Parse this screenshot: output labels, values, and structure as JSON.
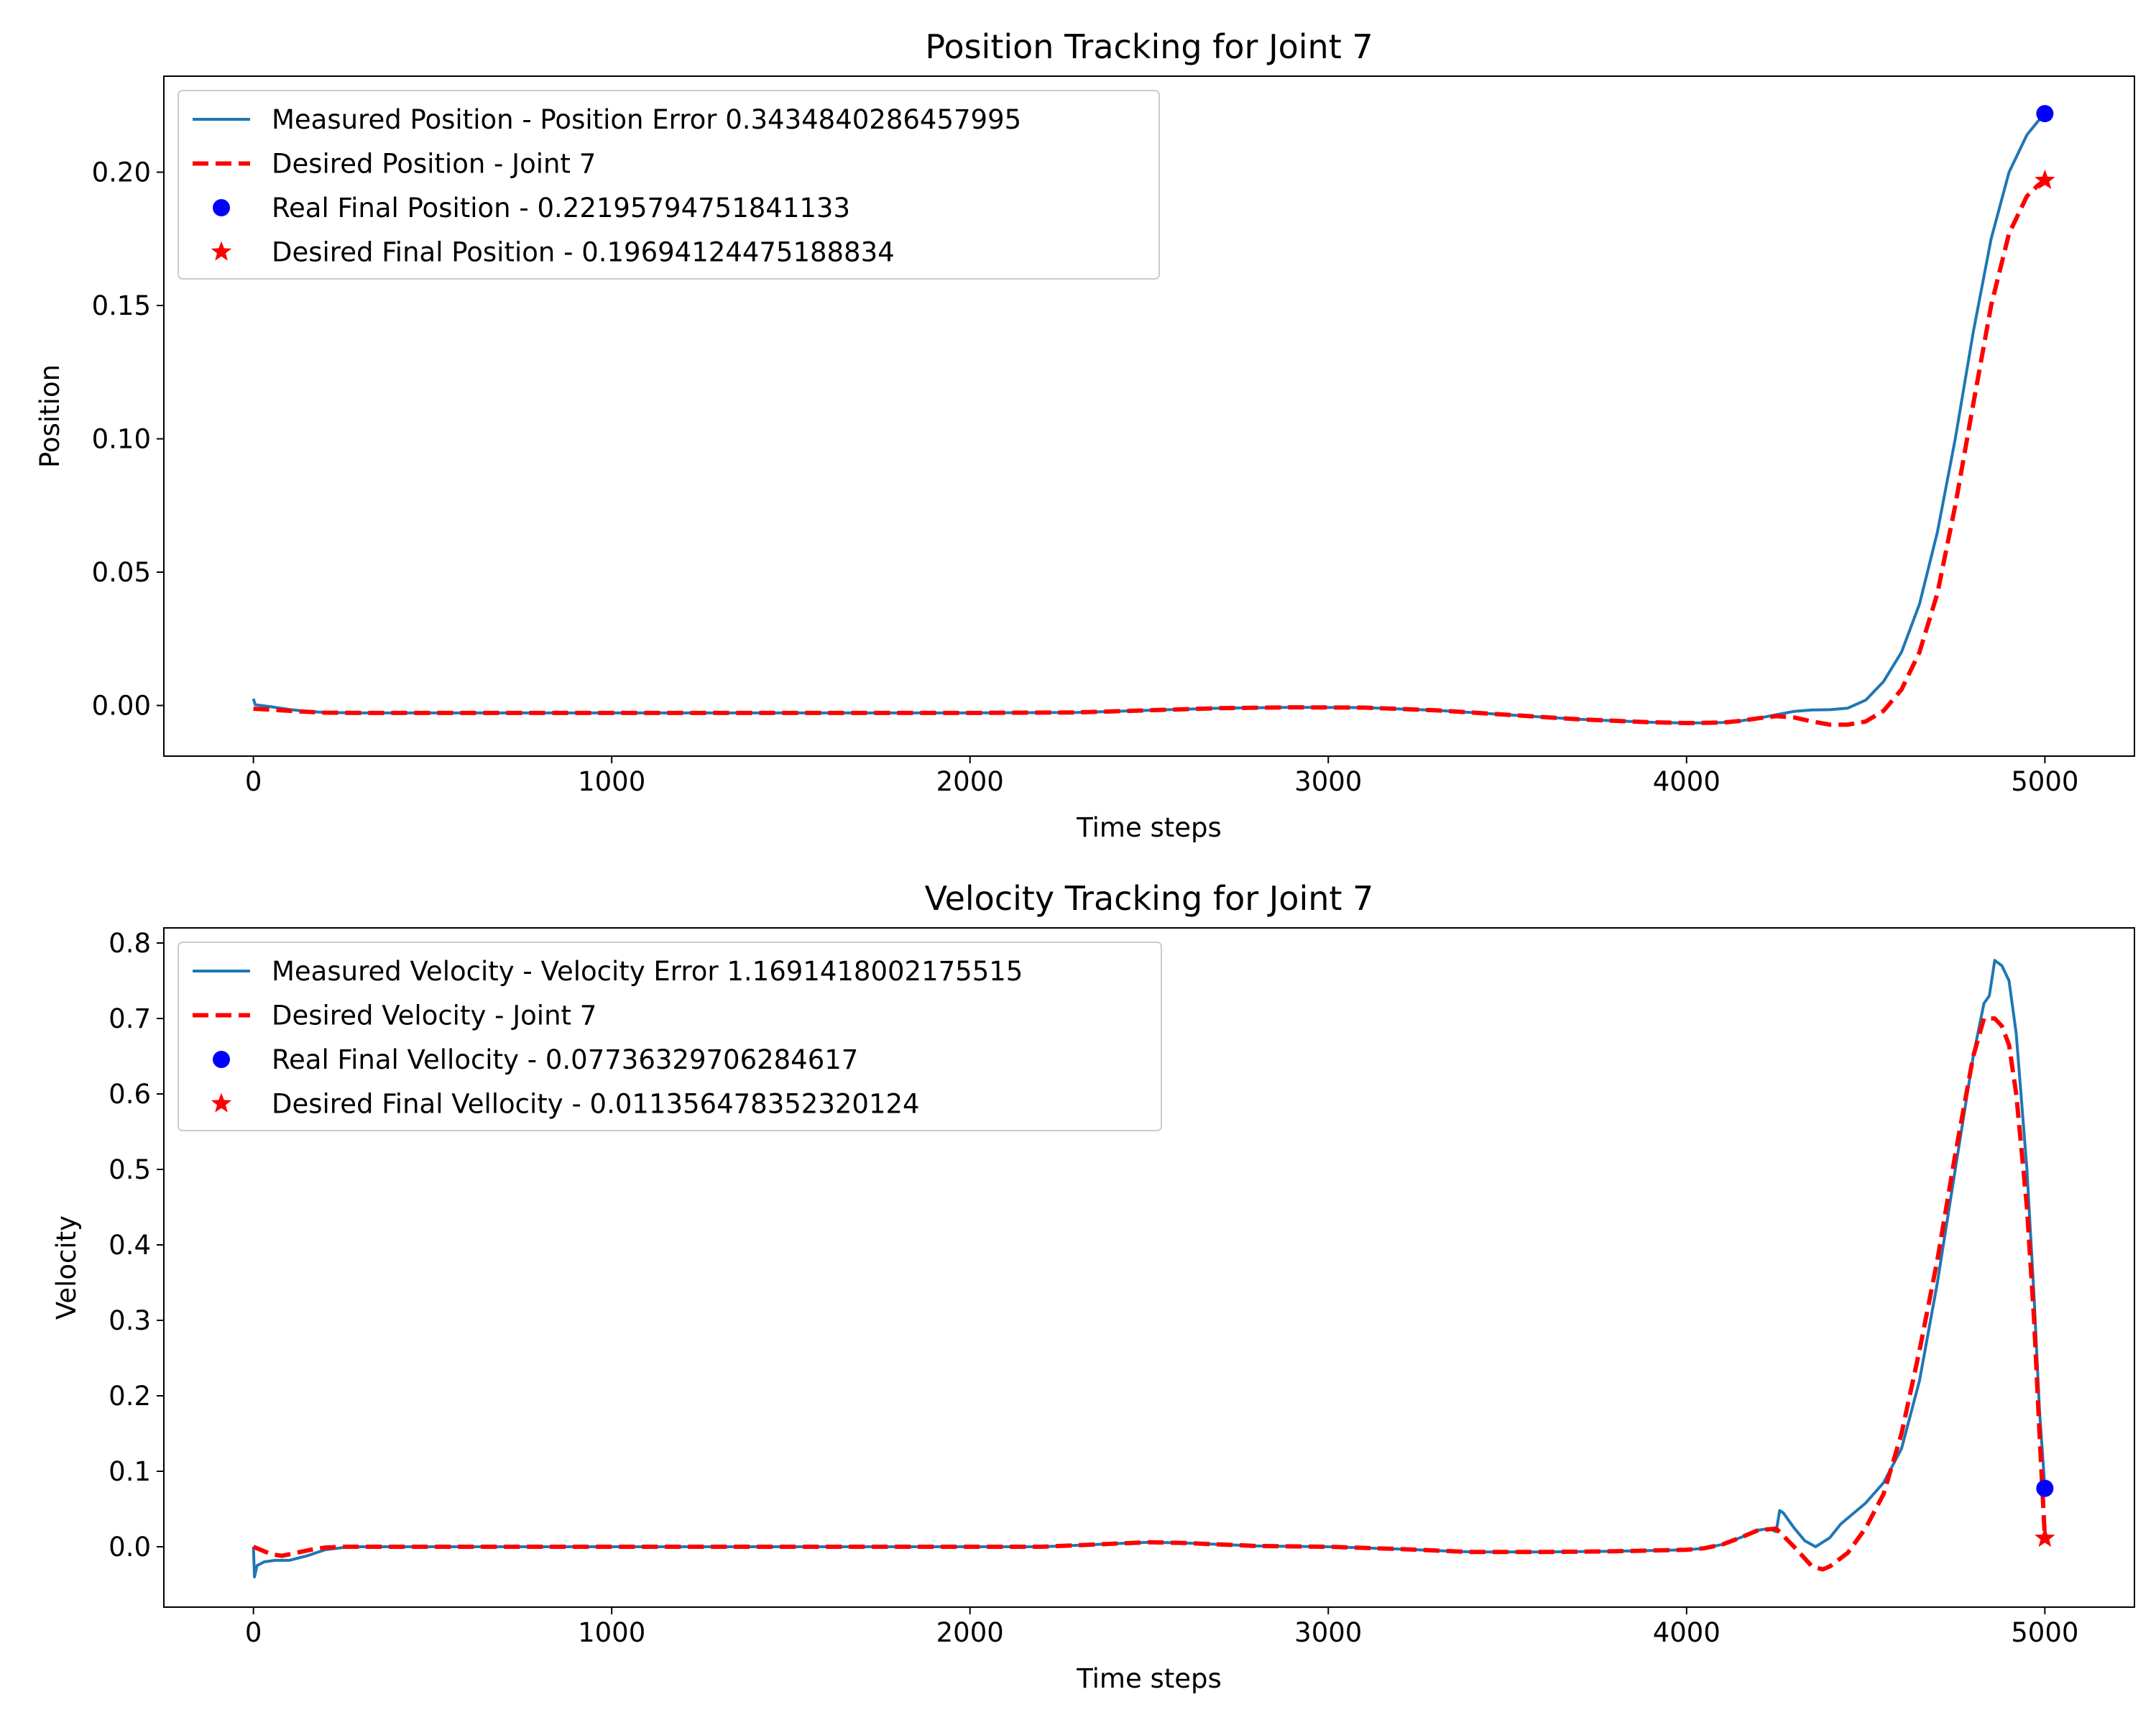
{
  "chart_data": [
    {
      "type": "line",
      "title": "Position Tracking for Joint 7",
      "xlabel": "Time steps",
      "ylabel": "Position",
      "xlim": [
        -250,
        5250
      ],
      "ylim": [
        -0.019,
        0.236
      ],
      "xticks": [
        0,
        1000,
        2000,
        3000,
        4000,
        5000
      ],
      "xtick_labels": [
        "0",
        "1000",
        "2000",
        "3000",
        "4000",
        "5000"
      ],
      "yticks": [
        0.0,
        0.05,
        0.1,
        0.15,
        0.2
      ],
      "ytick_labels": [
        "0.00",
        "0.05",
        "0.10",
        "0.15",
        "0.20"
      ],
      "grid": false,
      "legend_position": "top-left",
      "series": [
        {
          "name": "Measured Position - Position Error 0.3434840286457995",
          "style": "solid",
          "color": "#1f77b4",
          "x": [
            0,
            5,
            10,
            50,
            100,
            150,
            200,
            300,
            500,
            1000,
            1500,
            2000,
            2300,
            2500,
            2700,
            2900,
            3100,
            3300,
            3500,
            3700,
            3900,
            4000,
            4100,
            4150,
            4200,
            4250,
            4300,
            4350,
            4400,
            4450,
            4500,
            4550,
            4600,
            4650,
            4700,
            4750,
            4800,
            4850,
            4900,
            4950,
            4980,
            5000
          ],
          "y": [
            0.0025,
            0.0003,
            0.0002,
            -0.0005,
            -0.0015,
            -0.0022,
            -0.0026,
            -0.0028,
            -0.0028,
            -0.0028,
            -0.0028,
            -0.0028,
            -0.0026,
            -0.0018,
            -0.001,
            -0.0007,
            -0.0008,
            -0.0018,
            -0.0035,
            -0.0052,
            -0.0063,
            -0.0066,
            -0.0064,
            -0.0058,
            -0.0048,
            -0.0035,
            -0.0022,
            -0.0017,
            -0.0016,
            -0.001,
            0.002,
            0.009,
            0.02,
            0.038,
            0.065,
            0.1,
            0.14,
            0.175,
            0.2,
            0.214,
            0.219,
            0.22195794751841133
          ]
        },
        {
          "name": "Desired Position - Joint 7",
          "style": "dashed",
          "color": "#ff0000",
          "x": [
            0,
            50,
            100,
            150,
            200,
            300,
            500,
            1000,
            1500,
            2000,
            2300,
            2500,
            2700,
            2900,
            3100,
            3300,
            3500,
            3700,
            3900,
            4000,
            4100,
            4150,
            4200,
            4250,
            4300,
            4350,
            4400,
            4450,
            4500,
            4550,
            4600,
            4650,
            4700,
            4750,
            4800,
            4850,
            4900,
            4950,
            4980,
            5000
          ],
          "y": [
            -0.0012,
            -0.0016,
            -0.002,
            -0.0024,
            -0.0027,
            -0.0028,
            -0.0028,
            -0.0028,
            -0.0028,
            -0.0028,
            -0.0026,
            -0.0018,
            -0.001,
            -0.0007,
            -0.0008,
            -0.0018,
            -0.0035,
            -0.0052,
            -0.0063,
            -0.0066,
            -0.0064,
            -0.0058,
            -0.0048,
            -0.004,
            -0.0045,
            -0.006,
            -0.0072,
            -0.0072,
            -0.006,
            -0.002,
            0.006,
            0.02,
            0.042,
            0.075,
            0.113,
            0.15,
            0.177,
            0.191,
            0.195,
            0.19694124475188834
          ]
        }
      ],
      "markers": [
        {
          "name": "Real Final Position - 0.22195794751841133",
          "shape": "circle",
          "color": "#0000ff",
          "x": 5000,
          "y": 0.22195794751841133
        },
        {
          "name": "Desired Final Position - 0.19694124475188834",
          "shape": "star",
          "color": "#ff0000",
          "x": 5000,
          "y": 0.19694124475188834
        }
      ]
    },
    {
      "type": "line",
      "title": "Velocity Tracking for Joint 7",
      "xlabel": "Time steps",
      "ylabel": "Velocity",
      "xlim": [
        -250,
        5250
      ],
      "ylim": [
        -0.08,
        0.82
      ],
      "xticks": [
        0,
        1000,
        2000,
        3000,
        4000,
        5000
      ],
      "xtick_labels": [
        "0",
        "1000",
        "2000",
        "3000",
        "4000",
        "5000"
      ],
      "yticks": [
        0.0,
        0.1,
        0.2,
        0.3,
        0.4,
        0.5,
        0.6,
        0.7,
        0.8
      ],
      "ytick_labels": [
        "0.0",
        "0.1",
        "0.2",
        "0.3",
        "0.4",
        "0.5",
        "0.6",
        "0.7",
        "0.8"
      ],
      "grid": false,
      "legend_position": "top-left",
      "series": [
        {
          "name": "Measured Velocity - Velocity Error 1.1691418002175515",
          "style": "solid",
          "color": "#1f77b4",
          "x": [
            0,
            3,
            10,
            30,
            60,
            100,
            150,
            200,
            250,
            300,
            500,
            1000,
            1500,
            2000,
            2200,
            2400,
            2500,
            2600,
            2800,
            3000,
            3200,
            3400,
            3600,
            3800,
            4000,
            4050,
            4100,
            4150,
            4200,
            4230,
            4250,
            4260,
            4270,
            4300,
            4330,
            4360,
            4400,
            4430,
            4500,
            4550,
            4600,
            4650,
            4700,
            4750,
            4800,
            4830,
            4845,
            4860,
            4880,
            4900,
            4920,
            4950,
            4970,
            4985,
            5000
          ],
          "y": [
            0.0,
            -0.04,
            -0.025,
            -0.02,
            -0.018,
            -0.018,
            -0.012,
            -0.004,
            -0.001,
            0.0,
            0.0,
            0.0,
            0.0,
            0.0,
            0.0,
            0.004,
            0.006,
            0.005,
            0.001,
            0.0,
            -0.003,
            -0.007,
            -0.007,
            -0.006,
            -0.004,
            -0.002,
            0.003,
            0.012,
            0.022,
            0.024,
            0.02,
            0.048,
            0.045,
            0.025,
            0.008,
            0.0,
            0.012,
            0.03,
            0.058,
            0.085,
            0.13,
            0.22,
            0.35,
            0.5,
            0.65,
            0.72,
            0.73,
            0.777,
            0.77,
            0.75,
            0.68,
            0.5,
            0.33,
            0.18,
            0.07736329706284617
          ]
        },
        {
          "name": "Desired Velocity - Joint 7",
          "style": "dashed",
          "color": "#ff0000",
          "x": [
            0,
            20,
            50,
            80,
            120,
            160,
            200,
            250,
            300,
            500,
            1000,
            1500,
            2000,
            2200,
            2400,
            2500,
            2600,
            2800,
            3000,
            3200,
            3400,
            3600,
            3800,
            4000,
            4050,
            4100,
            4150,
            4200,
            4250,
            4300,
            4350,
            4380,
            4400,
            4450,
            4500,
            4550,
            4600,
            4650,
            4700,
            4750,
            4800,
            4830,
            4860,
            4880,
            4900,
            4920,
            4950,
            4970,
            4985,
            5000
          ],
          "y": [
            0.0,
            -0.004,
            -0.01,
            -0.012,
            -0.008,
            -0.004,
            -0.001,
            0.0,
            0.0,
            0.0,
            0.0,
            0.0,
            0.0,
            0.0,
            0.004,
            0.006,
            0.005,
            0.001,
            0.0,
            -0.003,
            -0.007,
            -0.007,
            -0.006,
            -0.004,
            -0.002,
            0.003,
            0.012,
            0.022,
            0.024,
            0.0,
            -0.026,
            -0.03,
            -0.026,
            -0.008,
            0.025,
            0.07,
            0.15,
            0.26,
            0.38,
            0.52,
            0.65,
            0.7,
            0.7,
            0.69,
            0.665,
            0.6,
            0.45,
            0.3,
            0.15,
            0.011356478352320124
          ]
        }
      ],
      "markers": [
        {
          "name": "Real Final Vellocity - 0.07736329706284617",
          "shape": "circle",
          "color": "#0000ff",
          "x": 5000,
          "y": 0.07736329706284617
        },
        {
          "name": "Desired Final Vellocity - 0.011356478352320124",
          "shape": "star",
          "color": "#ff0000",
          "x": 5000,
          "y": 0.011356478352320124
        }
      ],
      "legend_labels": [
        "Measured Velocity - Velocity Error 1.1691418002175515",
        "Desired Velocity - Joint 7",
        "Real Final Vellocity - 0.07736329706284617",
        "Desired Final Vellocity - 0.011356478352320124"
      ]
    }
  ]
}
